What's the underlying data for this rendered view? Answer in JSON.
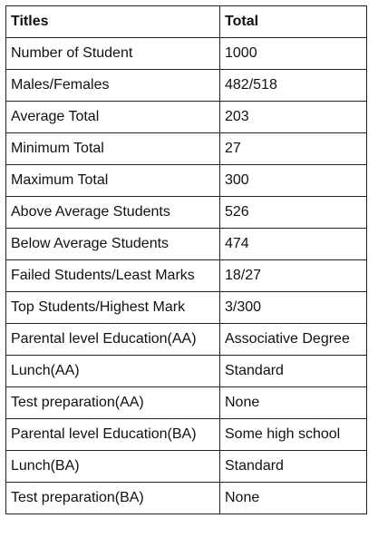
{
  "table": {
    "headers": [
      "Titles",
      "Total"
    ],
    "rows": [
      [
        "Number of Student",
        "1000"
      ],
      [
        "Males/Females",
        "482/518"
      ],
      [
        "Average Total",
        "203"
      ],
      [
        "Minimum Total",
        "27"
      ],
      [
        "Maximum Total",
        "300"
      ],
      [
        "Above Average Students",
        "526"
      ],
      [
        "Below Average Students",
        "474"
      ],
      [
        "Failed Students/Least Marks",
        "18/27"
      ],
      [
        "Top Students/Highest Mark",
        "3/300"
      ],
      [
        "Parental level Education(AA)",
        "Associative Degree"
      ],
      [
        "Lunch(AA)",
        "Standard"
      ],
      [
        "Test preparation(AA)",
        "None"
      ],
      [
        "Parental level Education(BA)",
        "Some high school"
      ],
      [
        "Lunch(BA)",
        "Standard"
      ],
      [
        "Test preparation(BA)",
        "None"
      ]
    ]
  }
}
